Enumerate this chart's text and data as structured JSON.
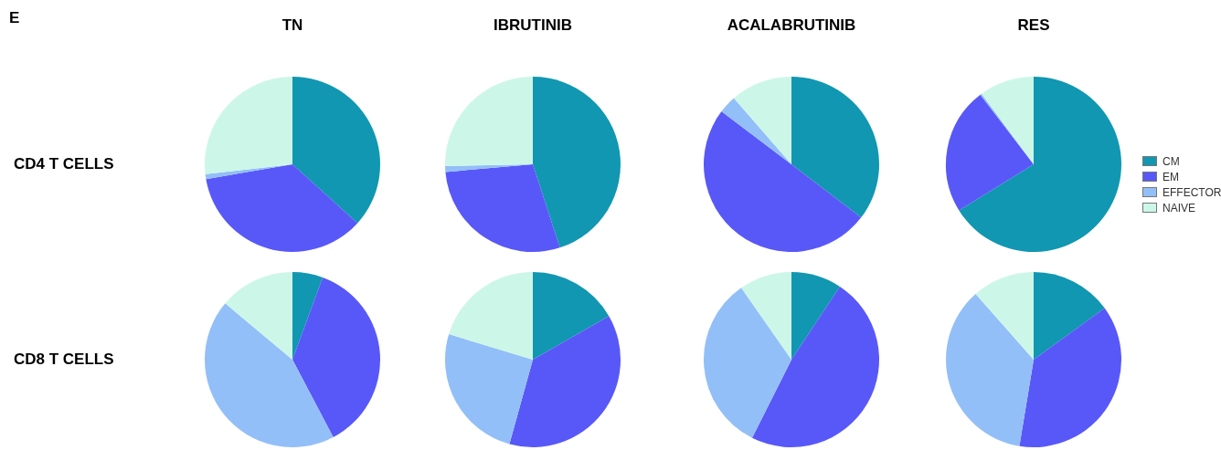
{
  "chart_data": [
    {
      "type": "pie",
      "title": "TN",
      "ylabel": "CD4 T CELLS",
      "annotations": [
        "E"
      ],
      "categories": [
        null,
        null,
        null,
        null
      ],
      "values": [
        36.7,
        35.6,
        0.9,
        26.8
      ],
      "colors": [
        "#1197b1",
        "#5858f8",
        "#93bff8",
        "#ccf7e8"
      ]
    },
    {
      "type": "pie",
      "title": "IBRUTINIB",
      "categories": [
        null,
        null,
        null,
        null
      ],
      "values": [
        45,
        28.6,
        1.1,
        25.3
      ],
      "colors": [
        "#1197b1",
        "#5858f8",
        "#93bff8",
        "#ccf7e8"
      ]
    },
    {
      "type": "pie",
      "title": "ACALABRUTINIB",
      "categories": [
        null,
        null,
        null,
        null
      ],
      "values": [
        35.4,
        49.9,
        3.3,
        11.4
      ],
      "colors": [
        "#1197b1",
        "#5858f8",
        "#93bff8",
        "#ccf7e8"
      ]
    },
    {
      "type": "pie",
      "title": "RES",
      "legend": "right",
      "categories": [
        "CM",
        "EM",
        "EFFECTOR",
        "NAIVE"
      ],
      "values": [
        66.2,
        23.4,
        0.3,
        10.1
      ],
      "colors": [
        "#1197b1",
        "#5858f8",
        "#93bff8",
        "#ccf7e8"
      ]
    },
    {
      "type": "pie",
      "ylabel": "CD8 T CELLS",
      "categories": [
        null,
        null,
        null,
        null
      ],
      "values": [
        5.6,
        36.7,
        43.8,
        13.9
      ],
      "colors": [
        "#1197b1",
        "#5858f8",
        "#93bff8",
        "#ccf7e8"
      ]
    },
    {
      "type": "pie",
      "categories": [
        null,
        null,
        null,
        null
      ],
      "values": [
        16.7,
        37.6,
        25.4,
        20.3
      ],
      "colors": [
        "#1197b1",
        "#5858f8",
        "#93bff8",
        "#ccf7e8"
      ]
    },
    {
      "type": "pie",
      "categories": [
        null,
        null,
        null,
        null
      ],
      "values": [
        9.3,
        48.1,
        32.9,
        9.7
      ],
      "colors": [
        "#1197b1",
        "#5858f8",
        "#93bff8",
        "#ccf7e8"
      ]
    },
    {
      "type": "pie",
      "categories": [
        null,
        null,
        null,
        null
      ],
      "values": [
        15,
        37.6,
        35.9,
        11.5
      ],
      "colors": [
        "#1197b1",
        "#5858f8",
        "#93bff8",
        "#ccf7e8"
      ]
    }
  ]
}
